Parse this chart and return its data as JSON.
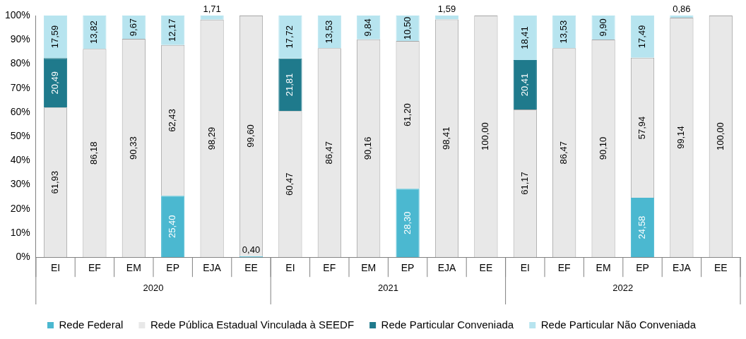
{
  "chart_data": {
    "type": "bar",
    "stacked": true,
    "categories": [
      "EI",
      "EF",
      "EM",
      "EP",
      "EJA",
      "EE",
      "EI",
      "EF",
      "EM",
      "EP",
      "EJA",
      "EE",
      "EI",
      "EF",
      "EM",
      "EP",
      "EJA",
      "EE"
    ],
    "annotations": [
      "2020",
      "2021",
      "2022"
    ],
    "series": [
      {
        "name": "Rede Federal",
        "color": "#4bb8d0",
        "values": [
          null,
          null,
          null,
          25.4,
          null,
          0.4,
          null,
          null,
          null,
          28.3,
          null,
          null,
          null,
          null,
          null,
          24.58,
          null,
          null
        ],
        "value_labels": [
          null,
          null,
          null,
          "25,40",
          null,
          "0,40",
          null,
          null,
          null,
          "28,30",
          null,
          null,
          null,
          null,
          null,
          "24,58",
          null,
          null
        ]
      },
      {
        "name": "Rede Pública Estadual Vinculada à SEEDF",
        "color": "#e8e8e8",
        "values": [
          61.93,
          86.18,
          90.33,
          62.43,
          98.29,
          99.6,
          60.47,
          86.47,
          90.16,
          61.2,
          98.41,
          100.0,
          61.17,
          86.47,
          90.1,
          57.94,
          99.14,
          100.0
        ],
        "value_labels": [
          "61,93",
          "86,18",
          "90,33",
          "62,43",
          "98,29",
          "99,60",
          "60,47",
          "86,47",
          "90,16",
          "61,20",
          "98,41",
          "100,00",
          "61,17",
          "86,47",
          "90,10",
          "57,94",
          "99,14",
          "100,00"
        ]
      },
      {
        "name": "Rede Particular Conveniada",
        "color": "#1f7a8c",
        "values": [
          20.49,
          null,
          null,
          null,
          null,
          null,
          21.81,
          null,
          null,
          null,
          null,
          null,
          20.41,
          null,
          null,
          null,
          null,
          null
        ],
        "value_labels": [
          "20,49",
          null,
          null,
          null,
          null,
          null,
          "21,81",
          null,
          null,
          null,
          null,
          null,
          "20,41",
          null,
          null,
          null,
          null,
          null
        ]
      },
      {
        "name": "Rede Particular Não Conveniada",
        "color": "#b7e4ef",
        "values": [
          17.59,
          13.82,
          9.67,
          12.17,
          1.71,
          null,
          17.72,
          13.53,
          9.84,
          10.5,
          1.59,
          null,
          18.41,
          13.53,
          9.9,
          17.49,
          0.86,
          null
        ],
        "value_labels": [
          "17,59",
          "13,82",
          "9,67",
          "12,17",
          "1,71",
          null,
          "17,72",
          "13,53",
          "9,84",
          "10,50",
          "1,59",
          null,
          "18,41",
          "13,53",
          "9,90",
          "17,49",
          "0,86",
          null
        ]
      }
    ],
    "ylim": [
      0,
      100
    ],
    "yticks": [
      {
        "value": 0,
        "label": "0%"
      },
      {
        "value": 10,
        "label": "10%"
      },
      {
        "value": 20,
        "label": "20%"
      },
      {
        "value": 30,
        "label": "30%"
      },
      {
        "value": 40,
        "label": "40%"
      },
      {
        "value": 50,
        "label": "50%"
      },
      {
        "value": 60,
        "label": "60%"
      },
      {
        "value": 70,
        "label": "70%"
      },
      {
        "value": 80,
        "label": "80%"
      },
      {
        "value": 90,
        "label": "90%"
      },
      {
        "value": 100,
        "label": "100%"
      }
    ],
    "legend": "bottom",
    "grid": false
  }
}
